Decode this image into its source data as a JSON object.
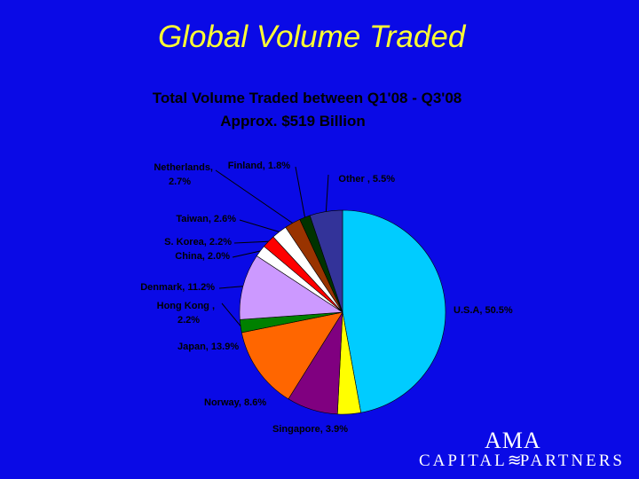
{
  "slide": {
    "title": "Global Volume Traded"
  },
  "logo": {
    "name": "AMA",
    "line_left": "CAPITAL",
    "line_right": "PARTNERS"
  },
  "colors": {
    "background": "#0A0AE6",
    "title": "#FFFF33"
  },
  "chart_data": {
    "type": "pie",
    "title": "Total Volume Traded between Q1'08 - Q3'08",
    "subtitle": "Approx. $519 Billion",
    "slices": [
      {
        "name": "U.S.A",
        "value": 50.5,
        "label": "U.S.A, 50.5%",
        "color": "#00CCFF"
      },
      {
        "name": "Singapore",
        "value": 3.9,
        "label": "Singapore, 3.9%",
        "color": "#FFFF00"
      },
      {
        "name": "Norway",
        "value": 8.6,
        "label": "Norway, 8.6%",
        "color": "#800080"
      },
      {
        "name": "Japan",
        "value": 13.9,
        "label": "Japan, 13.9%",
        "color": "#FF6600"
      },
      {
        "name": "Hong Kong",
        "value": 2.2,
        "label": "Hong Kong , 2.2%",
        "color": "#008000"
      },
      {
        "name": "Denmark",
        "value": 11.2,
        "label": "Denmark, 11.2%",
        "color": "#CC99FF"
      },
      {
        "name": "China",
        "value": 2.0,
        "label": "China, 2.0%",
        "color": "#FFFFFF"
      },
      {
        "name": "S. Korea",
        "value": 2.2,
        "label": "S. Korea, 2.2%",
        "color": "#FF0000"
      },
      {
        "name": "Taiwan",
        "value": 2.6,
        "label": "Taiwan, 2.6%",
        "color": "#FFFFFF"
      },
      {
        "name": "Netherlands",
        "value": 2.7,
        "label": "Netherlands, 2.7%",
        "color": "#993300"
      },
      {
        "name": "Finland",
        "value": 1.8,
        "label": "Finland, 1.8%",
        "color": "#003300"
      },
      {
        "name": "Other",
        "value": 5.5,
        "label": "Other , 5.5%",
        "color": "#333399"
      }
    ]
  }
}
